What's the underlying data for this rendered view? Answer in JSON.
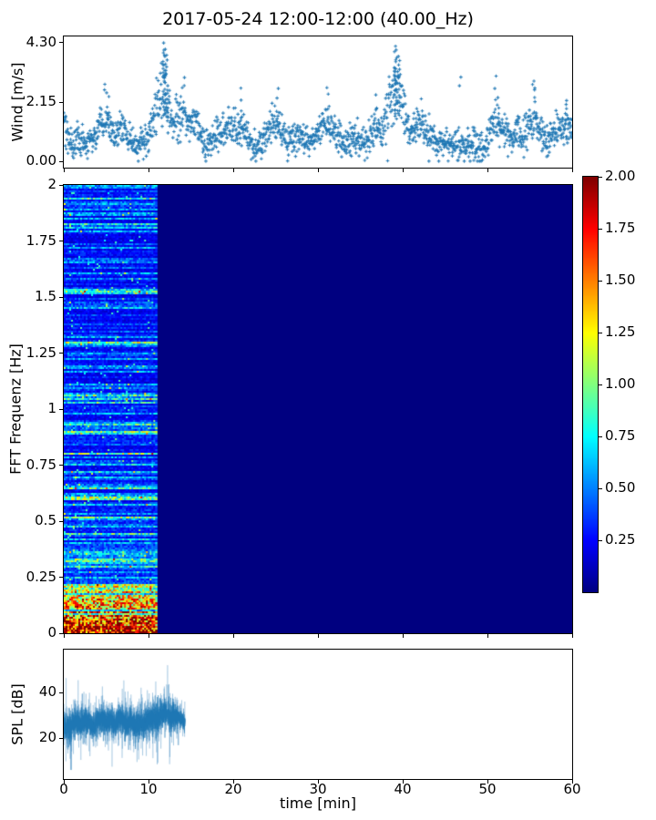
{
  "figure": {
    "title": "2017-05-24 12:00-12:00 (40.00_Hz)",
    "xlabel": "time [min]",
    "x_tick_labels": [
      "0",
      "10",
      "20",
      "30",
      "40",
      "50",
      "60"
    ],
    "x_tick_values": [
      0,
      10,
      20,
      30,
      40,
      50,
      60
    ],
    "xlim": [
      0,
      60
    ]
  },
  "colors": {
    "data_blue": "#1f77b4",
    "spectrogram_background": "#000080",
    "axis_color": "#000000",
    "figure_background": "#ffffff",
    "colormap": "jet"
  },
  "chart_data": [
    {
      "type": "scatter",
      "name": "wind-speed",
      "ylabel": "Wind [m/s]",
      "y_tick_labels": [
        "0.00",
        "2.15",
        "4.30"
      ],
      "y_tick_values": [
        0,
        2.15,
        4.3
      ],
      "ylim": [
        -0.215,
        4.515
      ],
      "xlim": [
        0,
        60
      ],
      "marker": "+",
      "marker_color": "#1f77b4",
      "n_points": 1800,
      "noise_sigma": 0.3,
      "max_value": 4.3,
      "envelope_keypoints": [
        [
          0,
          1.5
        ],
        [
          0.5,
          0.85
        ],
        [
          1,
          0.6
        ],
        [
          1.5,
          0.9
        ],
        [
          2,
          0.7
        ],
        [
          2.5,
          0.6
        ],
        [
          3,
          0.8
        ],
        [
          3.5,
          0.9
        ],
        [
          4,
          1.2
        ],
        [
          4.5,
          1.5
        ],
        [
          5,
          1.5
        ],
        [
          5.5,
          1.0
        ],
        [
          6,
          0.85
        ],
        [
          6.5,
          1.1
        ],
        [
          7,
          1.2
        ],
        [
          7.5,
          0.9
        ],
        [
          8,
          0.7
        ],
        [
          8.5,
          0.6
        ],
        [
          9,
          0.6
        ],
        [
          9.5,
          0.7
        ],
        [
          10,
          1.0
        ],
        [
          10.5,
          1.3
        ],
        [
          11,
          2.0
        ],
        [
          11.5,
          2.4
        ],
        [
          12,
          2.5
        ],
        [
          12.3,
          1.8
        ],
        [
          12.8,
          1.3
        ],
        [
          13.2,
          1.6
        ],
        [
          14,
          1.8
        ],
        [
          14.5,
          1.4
        ],
        [
          15,
          1.2
        ],
        [
          15.5,
          1.4
        ],
        [
          16,
          1.1
        ],
        [
          16.5,
          0.8
        ],
        [
          17,
          0.6
        ],
        [
          17.5,
          0.8
        ],
        [
          18,
          1.0
        ],
        [
          18.5,
          0.8
        ],
        [
          19,
          1.1
        ],
        [
          19.5,
          1.3
        ],
        [
          20,
          1.4
        ],
        [
          20.5,
          1.1
        ],
        [
          21,
          1.3
        ],
        [
          21.5,
          1.0
        ],
        [
          22,
          0.8
        ],
        [
          22.5,
          0.6
        ],
        [
          23,
          0.55
        ],
        [
          23.5,
          0.8
        ],
        [
          24,
          1.1
        ],
        [
          24.5,
          1.3
        ],
        [
          25,
          1.5
        ],
        [
          25.5,
          1.1
        ],
        [
          26,
          1.0
        ],
        [
          26.5,
          0.8
        ],
        [
          27,
          0.9
        ],
        [
          27.5,
          0.7
        ],
        [
          28,
          1.0
        ],
        [
          28.5,
          0.8
        ],
        [
          29,
          0.6
        ],
        [
          29.5,
          0.9
        ],
        [
          30,
          1.1
        ],
        [
          30.5,
          1.4
        ],
        [
          31,
          1.5
        ],
        [
          31.5,
          1.2
        ],
        [
          32,
          1.0
        ],
        [
          32.5,
          0.8
        ],
        [
          33,
          0.6
        ],
        [
          33.5,
          0.7
        ],
        [
          34,
          0.9
        ],
        [
          34.5,
          0.7
        ],
        [
          35,
          0.8
        ],
        [
          35.5,
          0.6
        ],
        [
          36,
          0.9
        ],
        [
          36.5,
          1.0
        ],
        [
          37,
          1.2
        ],
        [
          37.5,
          1.1
        ],
        [
          38,
          1.5
        ],
        [
          38.5,
          2.0
        ],
        [
          39,
          2.6
        ],
        [
          39.4,
          2.8
        ],
        [
          39.8,
          2.2
        ],
        [
          40.2,
          1.8
        ],
        [
          40.6,
          1.2
        ],
        [
          41,
          1.0
        ],
        [
          41.5,
          1.2
        ],
        [
          42,
          1.5
        ],
        [
          42.5,
          1.2
        ],
        [
          43,
          0.9
        ],
        [
          43.5,
          0.8
        ],
        [
          44,
          0.65
        ],
        [
          44.5,
          0.8
        ],
        [
          45,
          0.7
        ],
        [
          45.5,
          0.6
        ],
        [
          46,
          0.5
        ],
        [
          46.5,
          0.6
        ],
        [
          47,
          0.7
        ],
        [
          47.5,
          0.55
        ],
        [
          48,
          0.5
        ],
        [
          48.5,
          0.6
        ],
        [
          49,
          0.55
        ],
        [
          49.5,
          0.7
        ],
        [
          50,
          0.9
        ],
        [
          50.5,
          1.3
        ],
        [
          51,
          1.7
        ],
        [
          51.5,
          1.4
        ],
        [
          52,
          1.1
        ],
        [
          52.5,
          0.9
        ],
        [
          53,
          0.8
        ],
        [
          53.5,
          1.0
        ],
        [
          54,
          0.9
        ],
        [
          54.5,
          1.1
        ],
        [
          55,
          1.5
        ],
        [
          55.5,
          1.7
        ],
        [
          56,
          1.2
        ],
        [
          56.5,
          0.9
        ],
        [
          57,
          0.7
        ],
        [
          57.5,
          0.9
        ],
        [
          58,
          1.0
        ],
        [
          58.5,
          1.2
        ],
        [
          59,
          1.4
        ],
        [
          59.5,
          1.2
        ],
        [
          60,
          1.1
        ]
      ],
      "spikes": [
        [
          11.85,
          1.6,
          4.3,
          26
        ],
        [
          12.15,
          1.6,
          3.9,
          14
        ],
        [
          39.15,
          1.6,
          4.25,
          24
        ],
        [
          39.5,
          1.6,
          3.7,
          14
        ],
        [
          5.2,
          1.5,
          2.6,
          5
        ],
        [
          20.9,
          1.5,
          2.95,
          4
        ],
        [
          25.3,
          1.5,
          2.8,
          4
        ],
        [
          31.2,
          1.5,
          2.7,
          4
        ],
        [
          36.8,
          1.5,
          2.9,
          4
        ],
        [
          46.8,
          2.0,
          3.2,
          2
        ],
        [
          51.3,
          1.5,
          2.7,
          4
        ],
        [
          55.6,
          1.5,
          3.05,
          5
        ],
        [
          59.3,
          1.5,
          2.5,
          4
        ]
      ]
    },
    {
      "type": "heatmap",
      "name": "spectrogram",
      "ylabel": "FFT Frequenz [Hz]",
      "y_tick_labels": [
        "0",
        "0.25",
        "0.5",
        "0.75",
        "1",
        "1.25",
        "1.5",
        "1.75",
        "2"
      ],
      "y_tick_values": [
        0,
        0.25,
        0.5,
        0.75,
        1,
        1.25,
        1.5,
        1.75,
        2
      ],
      "ylim": [
        0,
        2
      ],
      "xlim": [
        0,
        60
      ],
      "colormap": "jet",
      "clim": [
        0,
        2
      ],
      "data_time_range": [
        0,
        11
      ],
      "background_value": 0,
      "low_freq_cutoff": 0.22,
      "low_freq_max": 2.0,
      "colorbar": {
        "tick_labels": [
          "0.25",
          "0.50",
          "0.75",
          "1.00",
          "1.25",
          "1.50",
          "1.75",
          "2.00"
        ],
        "tick_values": [
          0.25,
          0.5,
          0.75,
          1.0,
          1.25,
          1.5,
          1.75,
          2.0
        ],
        "lim": [
          0,
          2
        ]
      }
    },
    {
      "type": "line",
      "name": "spl",
      "ylabel": "SPL [dB]",
      "y_tick_labels": [
        "20",
        "40"
      ],
      "y_tick_values": [
        20,
        40
      ],
      "ylim": [
        2,
        59
      ],
      "xlim": [
        0,
        60
      ],
      "line_color": "#1f77b4",
      "data_time_range": [
        0,
        14.3
      ],
      "noise_sigma": 3.2,
      "peak": [
        12.25,
        52
      ],
      "min_value": 8,
      "envelope_keypoints": [
        [
          0,
          25
        ],
        [
          0.5,
          24
        ],
        [
          1,
          26
        ],
        [
          1.5,
          27
        ],
        [
          2,
          26
        ],
        [
          2.5,
          28
        ],
        [
          3,
          27
        ],
        [
          3.5,
          24.5
        ],
        [
          4,
          28
        ],
        [
          4.5,
          29
        ],
        [
          5,
          27
        ],
        [
          5.5,
          28
        ],
        [
          6,
          26
        ],
        [
          6.5,
          29
        ],
        [
          7,
          28
        ],
        [
          7.5,
          26
        ],
        [
          8,
          27
        ],
        [
          8.5,
          25
        ],
        [
          9,
          27
        ],
        [
          9.5,
          26
        ],
        [
          10,
          28
        ],
        [
          10.5,
          29
        ],
        [
          11,
          28
        ],
        [
          11.5,
          30
        ],
        [
          12,
          31
        ],
        [
          12.3,
          30
        ],
        [
          12.7,
          29
        ],
        [
          13,
          30
        ],
        [
          13.5,
          29
        ],
        [
          14,
          28
        ],
        [
          14.3,
          27
        ]
      ]
    }
  ]
}
